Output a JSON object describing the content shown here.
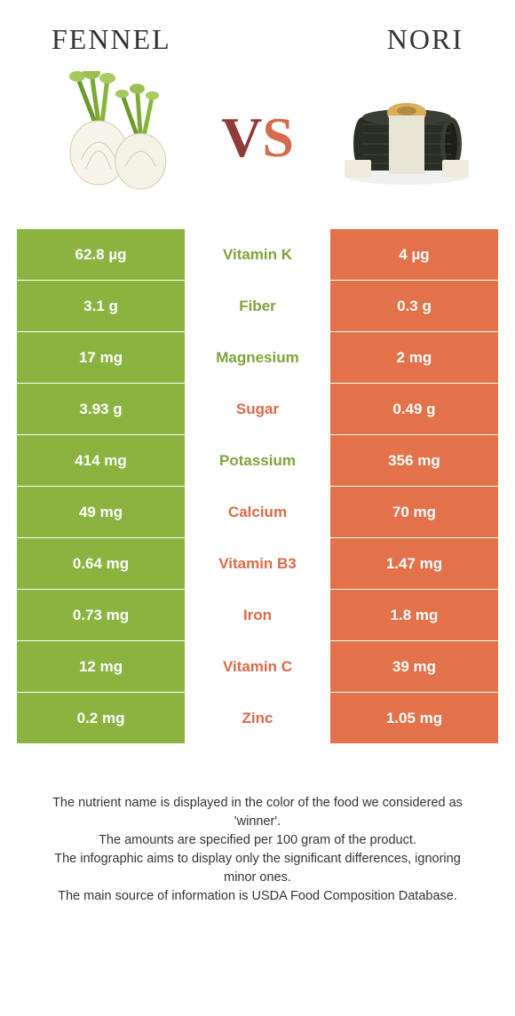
{
  "page": {
    "left_title": "FENNEL",
    "right_title": "NORI",
    "vs_v": "V",
    "vs_s": "S"
  },
  "colors": {
    "fennel": "#8bb340",
    "nori": "#e3714a",
    "fennel_text": "#7da339",
    "nori_text": "#db6a45"
  },
  "rows": [
    {
      "left": "62.8 µg",
      "label": "Vitamin K",
      "right": "4 µg",
      "winner": "fennel"
    },
    {
      "left": "3.1 g",
      "label": "Fiber",
      "right": "0.3 g",
      "winner": "fennel"
    },
    {
      "left": "17 mg",
      "label": "Magnesium",
      "right": "2 mg",
      "winner": "fennel"
    },
    {
      "left": "3.93 g",
      "label": "Sugar",
      "right": "0.49 g",
      "winner": "nori"
    },
    {
      "left": "414 mg",
      "label": "Potassium",
      "right": "356 mg",
      "winner": "fennel"
    },
    {
      "left": "49 mg",
      "label": "Calcium",
      "right": "70 mg",
      "winner": "nori"
    },
    {
      "left": "0.64 mg",
      "label": "Vitamin B3",
      "right": "1.47 mg",
      "winner": "nori"
    },
    {
      "left": "0.73 mg",
      "label": "Iron",
      "right": "1.8 mg",
      "winner": "nori"
    },
    {
      "left": "12 mg",
      "label": "Vitamin C",
      "right": "39 mg",
      "winner": "nori"
    },
    {
      "left": "0.2 mg",
      "label": "Zinc",
      "right": "1.05 mg",
      "winner": "nori"
    }
  ],
  "footer": {
    "l1": "The nutrient name is displayed in the color of the food we considered as 'winner'.",
    "l2": "The amounts are specified per 100 gram of the product.",
    "l3": "The infographic aims to display only the significant differences, ignoring minor ones.",
    "l4": "The main source of information is USDA Food Composition Database."
  }
}
